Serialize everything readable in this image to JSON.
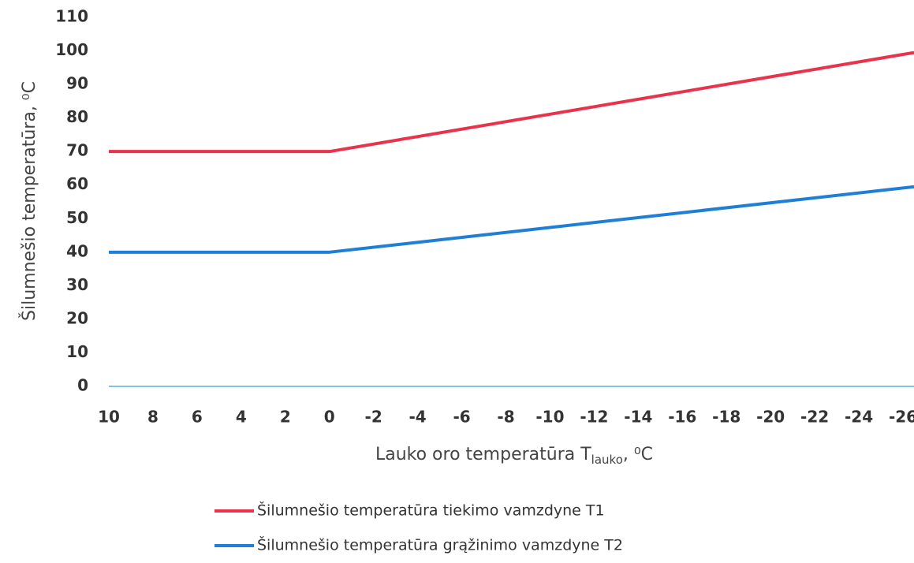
{
  "chart_data": {
    "type": "line",
    "ylabel": "Šilumnešio temperatūra, ⁰C",
    "xlabel": "Lauko oro temperatūra T",
    "xlabel_sub": "lauko",
    "xlabel_unit": ", ⁰C",
    "x": [
      10,
      0,
      -26.5
    ],
    "series": [
      {
        "name": "Šilumnešio temperatūra tiekimo vamzdyne T1",
        "color": "#e8334a",
        "values": [
          70,
          70,
          99.5
        ]
      },
      {
        "name": "Šilumnešio temperatūra grąžinimo vamzdyne T2",
        "color": "#1f7fd6",
        "values": [
          40,
          40,
          59.5
        ]
      }
    ],
    "xlim": [
      10,
      -26.5
    ],
    "xticks": [
      10,
      8,
      6,
      4,
      2,
      0,
      -2,
      -4,
      -6,
      -8,
      -10,
      -12,
      -14,
      -16,
      -18,
      -20,
      -22,
      -24,
      -26
    ],
    "ylim": [
      0,
      110
    ],
    "yticks": [
      0,
      10,
      20,
      30,
      40,
      50,
      60,
      70,
      80,
      90,
      100,
      110
    ],
    "grid": false
  }
}
